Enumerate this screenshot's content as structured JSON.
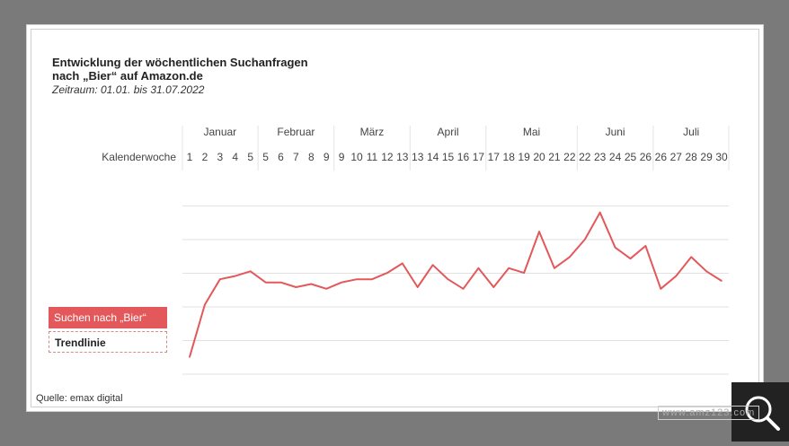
{
  "chart_data": {
    "type": "line",
    "title_lines": [
      "Entwicklung der wöchentlichen Suchanfragen",
      "nach „Bier“ auf Amazon.de"
    ],
    "subtitle": "Zeitraum: 01.01. bis 31.07.2022",
    "row_label": "Kalenderwoche",
    "months": [
      {
        "label": "Januar",
        "weeks": [
          1,
          5
        ]
      },
      {
        "label": "Februar",
        "weeks": [
          5,
          9
        ]
      },
      {
        "label": "März",
        "weeks": [
          9,
          13
        ]
      },
      {
        "label": "April",
        "weeks": [
          13,
          17
        ]
      },
      {
        "label": "Mai",
        "weeks": [
          17,
          22
        ]
      },
      {
        "label": "Juni",
        "weeks": [
          22,
          26
        ]
      },
      {
        "label": "Juli",
        "weeks": [
          26,
          30
        ]
      }
    ],
    "week_labels": [
      "1",
      "2",
      "3",
      "4",
      "5",
      "5",
      "6",
      "7",
      "8",
      "9",
      "9",
      "10",
      "11",
      "12",
      "13",
      "13",
      "14",
      "15",
      "16",
      "17",
      "17",
      "18",
      "19",
      "20",
      "21",
      "22",
      "22",
      "23",
      "24",
      "25",
      "26",
      "26",
      "27",
      "28",
      "29",
      "30"
    ],
    "series": [
      {
        "name": "Suchen nach „Bier“",
        "color": "#e3585a",
        "values": [
          4,
          37,
          53,
          55,
          58,
          51,
          51,
          48,
          50,
          47,
          51,
          53,
          53,
          57,
          63,
          48,
          62,
          53,
          47,
          60,
          48,
          60,
          57,
          83,
          60,
          67,
          78,
          95,
          73,
          66,
          74,
          47,
          55,
          67,
          58,
          52
        ]
      }
    ],
    "legend": [
      "Suchen nach „Bier“",
      "Trendlinie"
    ],
    "ylim": [
      0,
      100
    ],
    "grid": true,
    "source": "Quelle: emax digital",
    "watermark": "www.amz123.com"
  }
}
